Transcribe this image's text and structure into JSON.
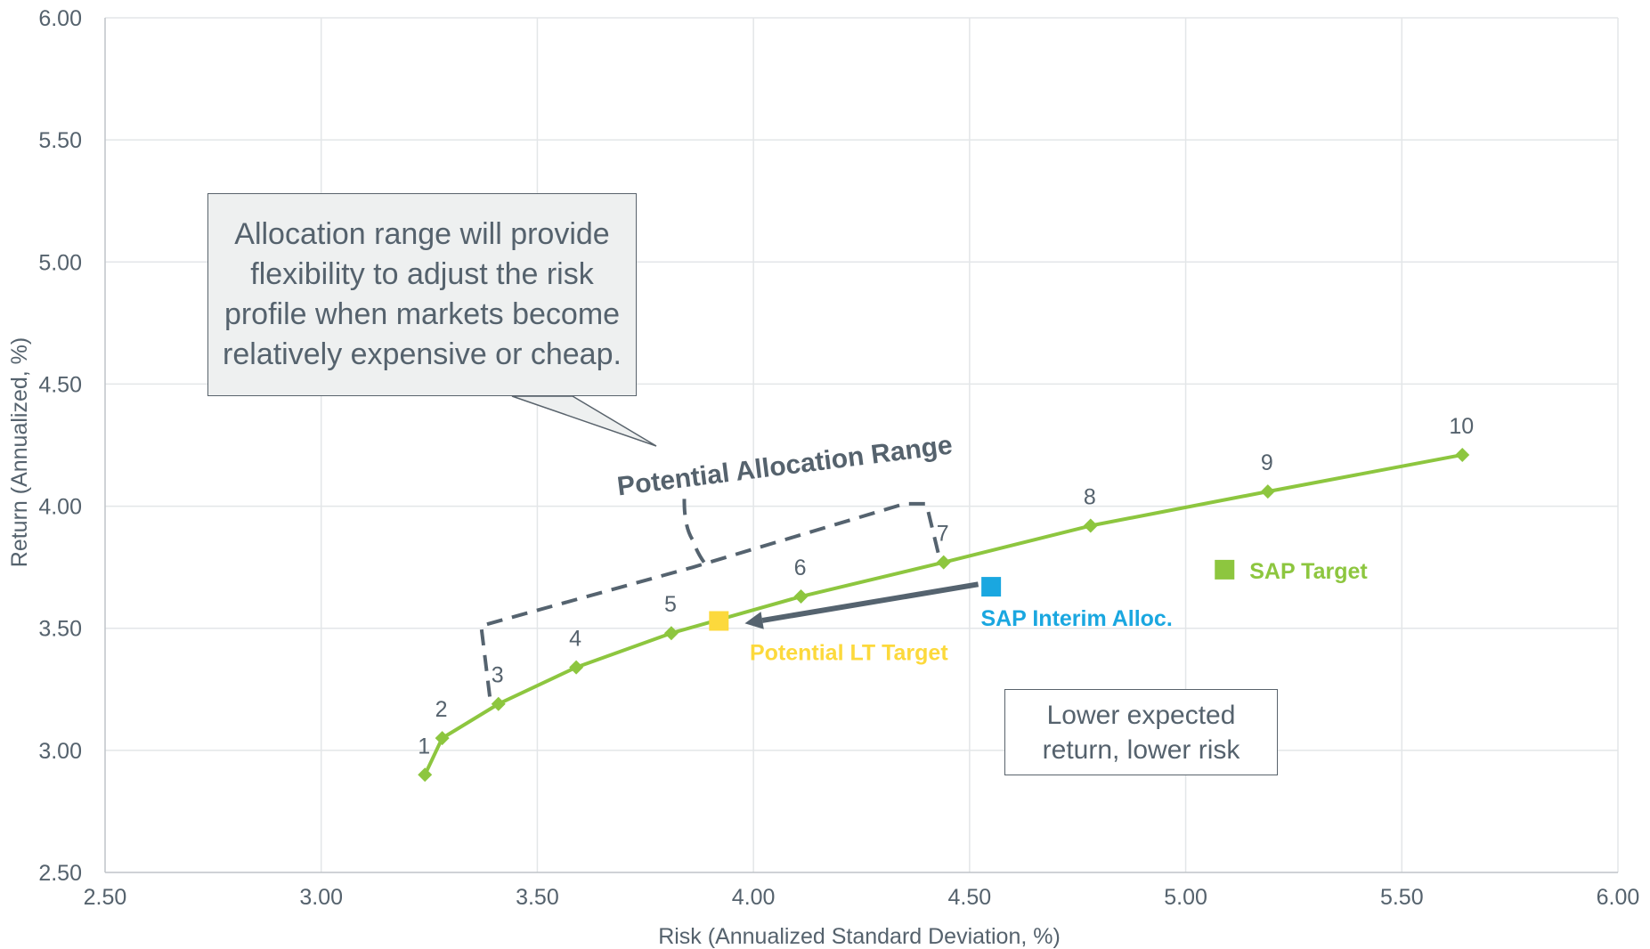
{
  "chart_data": {
    "type": "scatter",
    "title": "",
    "xlabel": "Risk (Annualized Standard Deviation, %)",
    "ylabel": "Return (Annualized, %)",
    "xlim": [
      2.5,
      6.0
    ],
    "ylim": [
      2.5,
      6.0
    ],
    "x_ticks": [
      "2.50",
      "3.00",
      "3.50",
      "4.00",
      "4.50",
      "5.00",
      "5.50",
      "6.00"
    ],
    "y_ticks": [
      "2.50",
      "3.00",
      "3.50",
      "4.00",
      "4.50",
      "5.00",
      "5.50",
      "6.00"
    ],
    "grid": true,
    "series": [
      {
        "name": "",
        "kind": "line-markers",
        "color": "#8dc63f",
        "points": [
          {
            "label": "1",
            "x": 3.24,
            "y": 2.9
          },
          {
            "label": "2",
            "x": 3.28,
            "y": 3.05
          },
          {
            "label": "3",
            "x": 3.41,
            "y": 3.19
          },
          {
            "label": "4",
            "x": 3.59,
            "y": 3.34
          },
          {
            "label": "5",
            "x": 3.81,
            "y": 3.48
          },
          {
            "label": "6",
            "x": 4.11,
            "y": 3.63
          },
          {
            "label": "7",
            "x": 4.44,
            "y": 3.77
          },
          {
            "label": "8",
            "x": 4.78,
            "y": 3.92
          },
          {
            "label": "9",
            "x": 5.19,
            "y": 4.06
          },
          {
            "label": "10",
            "x": 5.64,
            "y": 4.21
          }
        ]
      }
    ],
    "highlight_points": [
      {
        "name": "SAP Target",
        "x": 5.09,
        "y": 3.74,
        "color": "#8dc63f"
      },
      {
        "name": "SAP Interim Alloc.",
        "x": 4.55,
        "y": 3.67,
        "color": "#1aa7e0"
      },
      {
        "name": "Potential LT Target",
        "x": 3.92,
        "y": 3.53,
        "color": "#fcd93c"
      }
    ],
    "arrow": {
      "from_x": 4.52,
      "from_y": 3.68,
      "to_x": 3.98,
      "to_y": 3.52,
      "color": "#55636f"
    },
    "allocation_range": {
      "label": "Potential Allocation Range",
      "outline": [
        {
          "x": 3.39,
          "y": 3.22
        },
        {
          "x": 3.37,
          "y": 3.51
        },
        {
          "x": 3.86,
          "y": 3.75
        },
        {
          "x": 4.35,
          "y": 4.01
        },
        {
          "x": 4.4,
          "y": 4.01
        },
        {
          "x": 4.43,
          "y": 3.79
        }
      ],
      "brace": [
        {
          "x": 3.84,
          "y": 4.03
        },
        {
          "x": 3.86,
          "y": 3.86
        },
        {
          "x": 3.89,
          "y": 3.76
        }
      ],
      "color": "#55636f"
    },
    "annotations": {
      "callout": "Allocation range will provide flexibility to adjust the risk profile when markets become relatively expensive or cheap.",
      "note": "Lower expected return, lower risk"
    }
  }
}
